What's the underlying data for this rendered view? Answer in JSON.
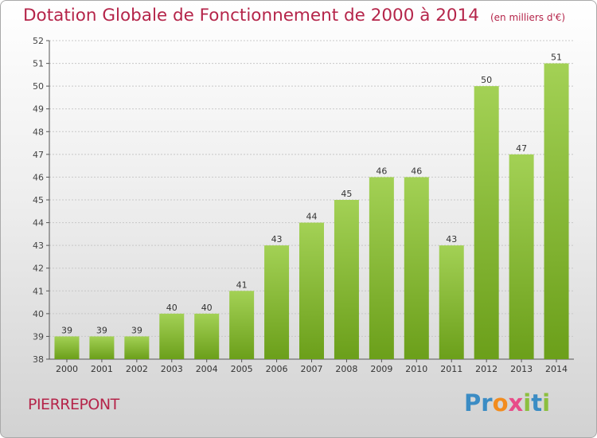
{
  "header": {
    "title": "Dotation Globale de Fonctionnement de 2000 à 2014",
    "subtitle": "(en milliers d'€)"
  },
  "footer": {
    "commune": "PIERREPONT",
    "logo": "Proxiti"
  },
  "colors": {
    "title": "#b5254a",
    "bar_top": "#a3d155",
    "bar_bottom": "#6b9f1a",
    "logo_letters": [
      "#3b8cc4",
      "#3b8cc4",
      "#f28c1e",
      "#e84c89",
      "#8cbf3f",
      "#3b8cc4",
      "#8cbf3f"
    ]
  },
  "chart_data": {
    "type": "bar",
    "title": "Dotation Globale de Fonctionnement de 2000 à 2014",
    "subtitle": "(en milliers d'€)",
    "xlabel": "",
    "ylabel": "",
    "categories": [
      "2000",
      "2001",
      "2002",
      "2003",
      "2004",
      "2005",
      "2006",
      "2007",
      "2008",
      "2009",
      "2010",
      "2011",
      "2012",
      "2013",
      "2014"
    ],
    "values": [
      39,
      39,
      39,
      40,
      40,
      41,
      43,
      44,
      45,
      46,
      46,
      43,
      50,
      47,
      51
    ],
    "data_labels": [
      "39",
      "39",
      "39",
      "40",
      "40",
      "41",
      "43",
      "44",
      "45",
      "46",
      "46",
      "43",
      "50",
      "47",
      "51"
    ],
    "ylim": [
      38,
      52
    ],
    "yticks": [
      "38",
      "39",
      "40",
      "41",
      "42",
      "43",
      "44",
      "45",
      "46",
      "47",
      "48",
      "49",
      "50",
      "51",
      "52"
    ],
    "grid": true,
    "legend": "none"
  }
}
